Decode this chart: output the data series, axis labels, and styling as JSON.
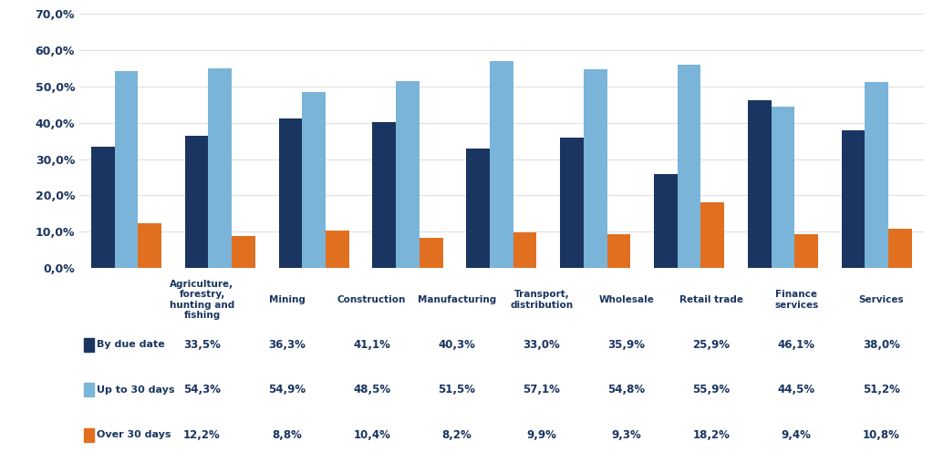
{
  "categories": [
    "Agriculture,\nforestry,\nhunting and\nfishing",
    "Mining",
    "Construction",
    "Manufacturing",
    "Transport,\ndistribution",
    "Wholesale",
    "Retail trade",
    "Finance\nservices",
    "Services"
  ],
  "series": {
    "By due date": [
      33.5,
      36.3,
      41.1,
      40.3,
      33.0,
      35.9,
      25.9,
      46.1,
      38.0
    ],
    "Up to 30 days": [
      54.3,
      54.9,
      48.5,
      51.5,
      57.1,
      54.8,
      55.9,
      44.5,
      51.2
    ],
    "Over 30 days": [
      12.2,
      8.8,
      10.4,
      8.2,
      9.9,
      9.3,
      18.2,
      9.4,
      10.8
    ]
  },
  "colors": {
    "By due date": "#1a3560",
    "Up to 30 days": "#7ab4d8",
    "Over 30 days": "#e07020"
  },
  "ylim": [
    0,
    70
  ],
  "yticks": [
    0,
    10,
    20,
    30,
    40,
    50,
    60,
    70
  ],
  "ytick_labels": [
    "0,0%",
    "10,0%",
    "20,0%",
    "30,0%",
    "40,0%",
    "50,0%",
    "60,0%",
    "70,0%"
  ],
  "table_rows": {
    "By due date": [
      "33,5%",
      "36,3%",
      "41,1%",
      "40,3%",
      "33,0%",
      "35,9%",
      "25,9%",
      "46,1%",
      "38,0%"
    ],
    "Up to 30 days": [
      "54,3%",
      "54,9%",
      "48,5%",
      "51,5%",
      "57,1%",
      "54,8%",
      "55,9%",
      "44,5%",
      "51,2%"
    ],
    "Over 30 days": [
      "12,2%",
      "8,8%",
      "10,4%",
      "8,2%",
      "9,9%",
      "9,3%",
      "18,2%",
      "9,4%",
      "10,8%"
    ]
  },
  "bar_width": 0.25,
  "background_color": "#ffffff",
  "plot_bg_color": "#ffffff",
  "grid_color": "#e0e0e0",
  "text_color": "#1a3560",
  "table_text_color": "#1a3560"
}
